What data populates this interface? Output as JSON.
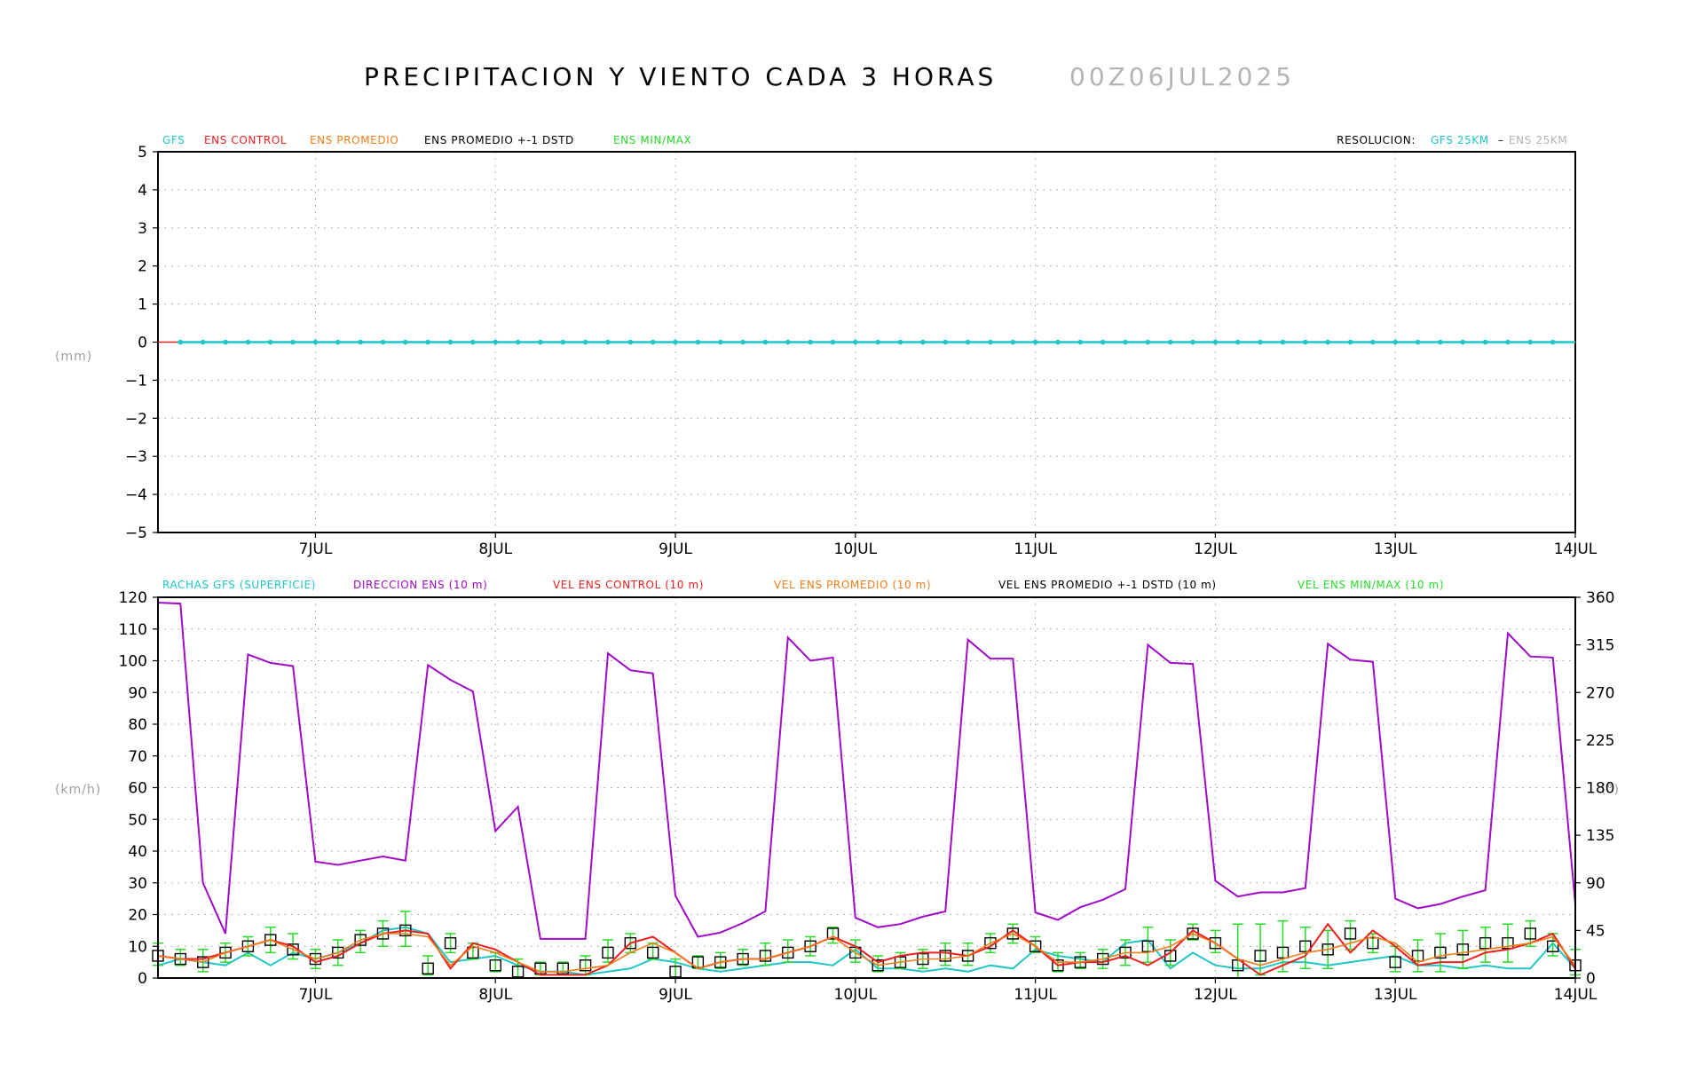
{
  "title": "PRECIPITACION Y VIENTO CADA 3 HORAS",
  "run_label": "00Z06JUL2025",
  "colors": {
    "gfs": "#1fc6c8",
    "ens_control": "#ee2020",
    "ens_promedio": "#f07d1a",
    "ens_std": "#000000",
    "ens_minmax": "#28dc28",
    "direccion": "#a00ac8",
    "gray": "#9e9e9e"
  },
  "top_panel": {
    "legend": [
      "GFS",
      "ENS CONTROL",
      "ENS PROMEDIO",
      "ENS PROMEDIO +-1 DSTD",
      "ENS MIN/MAX"
    ],
    "resolucion_label": "RESOLUCION:",
    "res_gfs": "GFS 25KM",
    "res_sep": "–",
    "res_ens": "ENS 25KM",
    "unit": "(mm)"
  },
  "bottom_panel": {
    "legend": [
      "RACHAS GFS (SUPERFICIE)",
      "DIRECCION ENS (10 m)",
      "VEL ENS CONTROL (10 m)",
      "VEL ENS PROMEDIO (10 m)",
      "VEL ENS PROMEDIO +-1 DSTD (10 m)",
      "VEL ENS MIN/MAX (10 m)"
    ],
    "unit_left": "(km/h)",
    "unit_right": "(°)"
  },
  "chart_data": [
    {
      "type": "line",
      "x_tick_labels": [
        "7JUL",
        "8JUL",
        "9JUL",
        "10JUL",
        "11JUL",
        "12JUL",
        "13JUL",
        "14JUL"
      ],
      "xlim": [
        "6JUL 03Z",
        "14JUL 00Z"
      ],
      "ylabel": "(mm)",
      "ylim": [
        -5,
        5
      ],
      "y_ticks": [
        5,
        4,
        3,
        2,
        1,
        0,
        -1,
        -2,
        -3,
        -4,
        -5
      ],
      "grid": true,
      "series": [
        {
          "name": "GFS",
          "constant_value": 0
        },
        {
          "name": "ENS CONTROL",
          "constant_value": 0
        }
      ]
    },
    {
      "type": "line",
      "x_tick_labels": [
        "7JUL",
        "8JUL",
        "9JUL",
        "10JUL",
        "11JUL",
        "12JUL",
        "13JUL",
        "14JUL"
      ],
      "xlim": [
        "6JUL 03Z",
        "14JUL 00Z"
      ],
      "step_hours": 3,
      "ylabel": "(km/h)",
      "ylim": [
        0,
        120
      ],
      "y_ticks": [
        120,
        110,
        100,
        90,
        80,
        70,
        60,
        50,
        40,
        30,
        20,
        10,
        0
      ],
      "y2label": "(°)",
      "y2lim": [
        0,
        360
      ],
      "y2_ticks": [
        360,
        315,
        270,
        225,
        180,
        135,
        90,
        45,
        0
      ],
      "grid": true,
      "series": [
        {
          "name": "DIRECCION ENS (10 m)",
          "axis": "right",
          "values": [
            355,
            354,
            90,
            42,
            306,
            298,
            295,
            110,
            107,
            111,
            115,
            111,
            296,
            282,
            271,
            139,
            162,
            37,
            37,
            37,
            307,
            291,
            288,
            78,
            39,
            43,
            52,
            63,
            322,
            300,
            303,
            57,
            48,
            51,
            58,
            63,
            320,
            302,
            302,
            62,
            55,
            67,
            74,
            84,
            315,
            298,
            297,
            92,
            77,
            81,
            81,
            85,
            316,
            301,
            299,
            75,
            66,
            70,
            77,
            83,
            326,
            304,
            303,
            70
          ]
        },
        {
          "name": "RACHAS GFS (SUPERFICIE)",
          "axis": "left",
          "values": [
            4,
            6,
            5,
            4,
            8,
            4,
            8,
            6,
            8,
            11,
            15,
            16,
            14,
            5,
            6,
            7,
            4,
            2,
            2,
            1,
            2,
            3,
            6,
            5,
            3,
            2,
            3,
            4,
            5,
            5,
            4,
            9,
            3,
            3,
            2,
            3,
            2,
            4,
            3,
            9,
            7,
            6,
            5,
            11,
            12,
            3,
            8,
            4,
            3,
            3,
            5,
            5,
            4,
            5,
            6,
            7,
            4,
            4,
            3,
            4,
            3,
            3,
            11,
            3
          ]
        },
        {
          "name": "VEL ENS CONTROL (10 m)",
          "axis": "left",
          "values": [
            7,
            6,
            6,
            8,
            10,
            12,
            10,
            5,
            7,
            11,
            14,
            15,
            14,
            3,
            11,
            9,
            5,
            1,
            1,
            1,
            4,
            11,
            13,
            8,
            3,
            5,
            6,
            6,
            8,
            10,
            13,
            10,
            5,
            7,
            8,
            8,
            7,
            10,
            15,
            10,
            4,
            5,
            5,
            7,
            4,
            8,
            15,
            11,
            6,
            1,
            4,
            7,
            17,
            8,
            15,
            10,
            4,
            5,
            5,
            8,
            9,
            11,
            14,
            3
          ]
        },
        {
          "name": "VEL ENS PROMEDIO (10 m)",
          "axis": "left",
          "values": [
            7,
            6,
            5,
            8,
            10,
            12,
            9,
            6,
            8,
            12,
            14,
            14,
            13,
            4,
            10,
            8,
            5,
            2,
            2,
            3,
            4,
            8,
            11,
            8,
            3,
            5,
            6,
            6,
            8,
            10,
            13,
            8,
            4,
            5,
            6,
            6,
            7,
            11,
            14,
            10,
            5,
            5,
            6,
            8,
            8,
            10,
            14,
            11,
            6,
            4,
            6,
            8,
            9,
            11,
            13,
            11,
            5,
            7,
            8,
            9,
            10,
            11,
            13,
            4
          ]
        },
        {
          "name": "VEL ENS PROMEDIO +-1 DSTD (10 m)",
          "axis": "left",
          "values": [
            7,
            6,
            5,
            8,
            10,
            12,
            9,
            6,
            8,
            12,
            14,
            15,
            3,
            11,
            8,
            4,
            2,
            3,
            3,
            4,
            8,
            11,
            8,
            2,
            5,
            5,
            6,
            7,
            8,
            10,
            14,
            8,
            4,
            5,
            6,
            7,
            7,
            11,
            14,
            10,
            4,
            5,
            6,
            8,
            10,
            7,
            14,
            11,
            4,
            7,
            8,
            10,
            9,
            14,
            11,
            5,
            7,
            8,
            9,
            11,
            11,
            14,
            10,
            4
          ]
        },
        {
          "name": "VEL ENS MIN/MAX (10 m)",
          "axis": "left",
          "values_max": [
            11,
            9,
            9,
            11,
            13,
            16,
            14,
            9,
            12,
            15,
            18,
            21,
            7,
            14,
            11,
            8,
            6,
            5,
            5,
            7,
            12,
            14,
            11,
            6,
            7,
            8,
            9,
            11,
            12,
            13,
            16,
            12,
            7,
            8,
            9,
            11,
            11,
            14,
            17,
            13,
            8,
            8,
            9,
            12,
            16,
            12,
            17,
            15,
            17,
            17,
            18,
            16,
            15,
            18,
            14,
            10,
            12,
            14,
            15,
            16,
            17,
            18,
            14,
            9
          ],
          "values_min": [
            4,
            4,
            2,
            5,
            7,
            8,
            6,
            3,
            4,
            8,
            10,
            10,
            1,
            8,
            6,
            2,
            0,
            1,
            1,
            1,
            5,
            8,
            6,
            0,
            3,
            3,
            4,
            4,
            5,
            7,
            11,
            5,
            2,
            3,
            3,
            4,
            4,
            8,
            11,
            8,
            2,
            3,
            3,
            4,
            5,
            4,
            12,
            8,
            0,
            1,
            2,
            3,
            3,
            9,
            8,
            2,
            2,
            2,
            3,
            5,
            5,
            10,
            7,
            1
          ]
        }
      ]
    }
  ]
}
